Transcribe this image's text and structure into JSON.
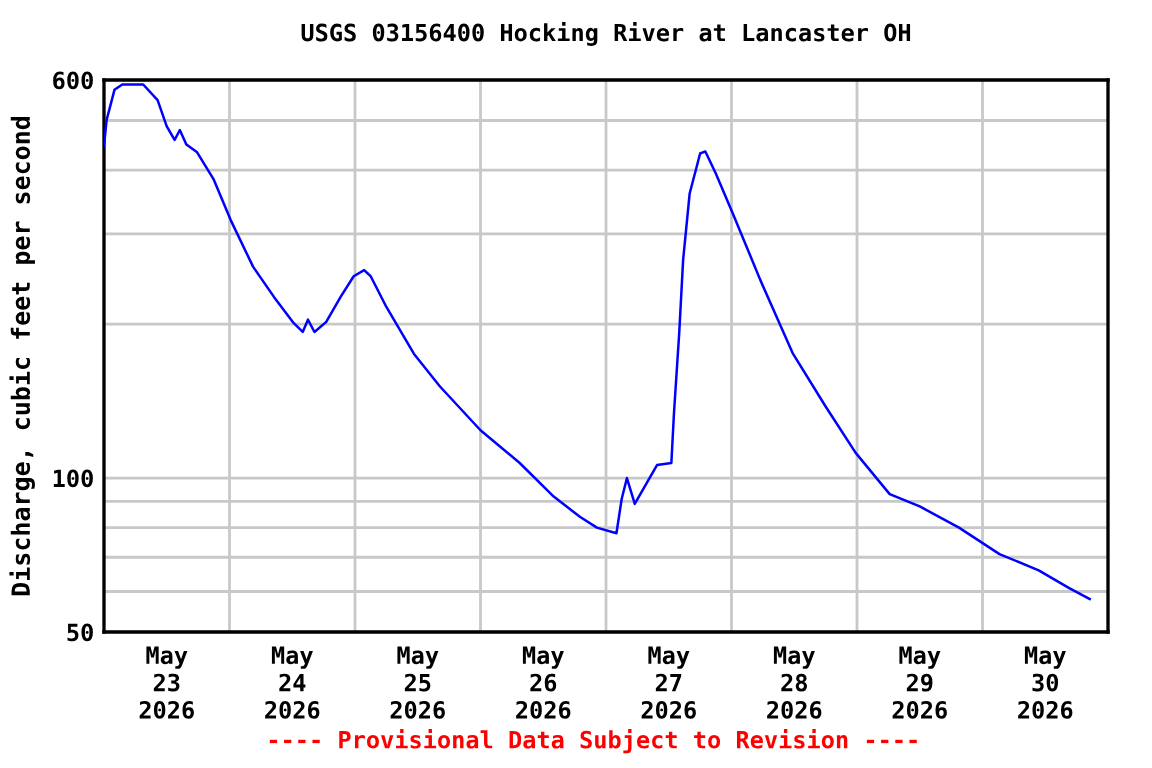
{
  "chart_data": {
    "type": "line",
    "title": "USGS 03156400 Hocking River at Lancaster OH",
    "ylabel": "Discharge, cubic feet per second",
    "annotations": [
      "---- Provisional Data Subject to Revision ----"
    ],
    "log": "y",
    "grid": true,
    "marker": "none",
    "line_style": "solid",
    "series": [
      {
        "color": "#0000ff",
        "x": [
          "2026-05-23T00:00",
          "2026-05-23T00:30",
          "2026-05-23T02:00",
          "2026-05-23T03:30",
          "2026-05-23T07:30",
          "2026-05-23T10:15",
          "2026-05-23T12:00",
          "2026-05-23T13:30",
          "2026-05-23T14:30",
          "2026-05-23T15:45",
          "2026-05-23T17:45",
          "2026-05-23T21:00",
          "2026-05-24T00:15",
          "2026-05-24T04:30",
          "2026-05-24T08:30",
          "2026-05-24T12:15",
          "2026-05-24T14:00",
          "2026-05-24T15:00",
          "2026-05-24T16:15",
          "2026-05-24T18:30",
          "2026-05-24T21:15",
          "2026-05-24T23:45",
          "2026-05-25T01:45",
          "2026-05-25T03:00",
          "2026-05-25T06:00",
          "2026-05-25T11:15",
          "2026-05-25T16:15",
          "2026-05-26T00:00",
          "2026-05-26T07:30",
          "2026-05-26T14:00",
          "2026-05-26T19:00",
          "2026-05-26T22:15",
          "2026-05-27T02:00",
          "2026-05-27T03:00",
          "2026-05-27T04:00",
          "2026-05-27T05:30",
          "2026-05-27T09:45",
          "2026-05-27T12:30",
          "2026-05-27T13:00",
          "2026-05-27T14:00",
          "2026-05-27T14:45",
          "2026-05-27T16:00",
          "2026-05-27T18:00",
          "2026-05-27T19:00",
          "2026-05-27T21:00",
          "2026-05-28T00:15",
          "2026-05-28T05:30",
          "2026-05-28T11:45",
          "2026-05-28T18:00",
          "2026-05-28T23:45",
          "2026-05-29T06:15",
          "2026-05-29T12:00",
          "2026-05-29T19:30",
          "2026-05-30T03:15",
          "2026-05-30T10:45",
          "2026-05-30T16:30",
          "2026-05-30T20:30"
        ],
        "values": [
          447,
          501,
          574,
          588,
          588,
          548,
          487,
          458,
          479,
          449,
          434,
          383,
          319,
          259,
          226,
          201,
          193,
          204,
          193,
          202,
          226,
          248,
          255,
          248,
          216,
          175,
          151,
          124,
          107,
          92,
          84,
          80,
          78,
          91,
          100,
          89,
          106,
          107,
          134,
          192,
          267,
          360,
          431,
          435,
          394,
          329,
          244,
          175,
          138,
          112,
          93,
          88,
          80,
          71,
          66,
          61,
          58
        ]
      }
    ],
    "xlim": [
      "2026-05-23",
      "2026-05-31"
    ],
    "xticks": [
      {
        "value": "2026-05-23T12:00",
        "label": "May\n23\n2026"
      },
      {
        "value": "2026-05-24T00:00",
        "label": null
      },
      {
        "value": "2026-05-24T12:00",
        "label": "May\n24\n2026"
      },
      {
        "value": "2026-05-25T00:00",
        "label": null
      },
      {
        "value": "2026-05-25T12:00",
        "label": "May\n25\n2026"
      },
      {
        "value": "2026-05-26T00:00",
        "label": null
      },
      {
        "value": "2026-05-26T12:00",
        "label": "May\n26\n2026"
      },
      {
        "value": "2026-05-27T00:00",
        "label": null
      },
      {
        "value": "2026-05-27T12:00",
        "label": "May\n27\n2026"
      },
      {
        "value": "2026-05-28T00:00",
        "label": null
      },
      {
        "value": "2026-05-28T12:00",
        "label": "May\n28\n2026"
      },
      {
        "value": "2026-05-29T00:00",
        "label": null
      },
      {
        "value": "2026-05-29T12:00",
        "label": "May\n29\n2026"
      },
      {
        "value": "2026-05-30T00:00",
        "label": null
      },
      {
        "value": "2026-05-30T12:00",
        "label": "May\n30\n2026"
      }
    ],
    "ylim": [
      50,
      600
    ],
    "yticks": [
      50,
      {
        "value": 60,
        "label": null
      },
      {
        "value": 70,
        "label": null
      },
      {
        "value": 80,
        "label": null
      },
      {
        "value": 90,
        "label": null
      },
      100,
      {
        "value": 200,
        "label": null
      },
      {
        "value": 300,
        "label": null
      },
      {
        "value": 400,
        "label": null
      },
      {
        "value": 500,
        "label": null
      },
      600
    ]
  }
}
